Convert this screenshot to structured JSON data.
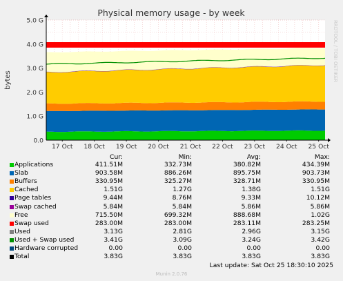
{
  "chart_data": {
    "type": "area",
    "title": "Physical memory usage - by week",
    "ylabel": "bytes",
    "watermark": "RRDTOOL / TOBI OETIKER",
    "xticks": [
      "17 Oct",
      "18 Oct",
      "19 Oct",
      "20 Oct",
      "21 Oct",
      "22 Oct",
      "23 Oct",
      "24 Oct",
      "25 Oct"
    ],
    "yticks": [
      "0.0",
      "1.0 G",
      "2.0 G",
      "3.0 G",
      "4.0 G",
      "5.0 G"
    ],
    "ylim_gb": [
      0,
      5
    ],
    "x_range_days": [
      16.5,
      25.2
    ],
    "series_gb": [
      {
        "name": "Applications",
        "color": "#00cc00",
        "start": 0.35,
        "end": 0.4
      },
      {
        "name": "Slab",
        "color": "#0066b3",
        "start": 0.86,
        "end": 0.88
      },
      {
        "name": "Buffers",
        "color": "#ff8000",
        "start": 0.31,
        "end": 0.33
      },
      {
        "name": "Cached",
        "color": "#ffcc00",
        "start": 1.3,
        "end": 1.51
      },
      {
        "name": "Page tables",
        "color": "#330099",
        "start": 0.009,
        "end": 0.009
      },
      {
        "name": "Swap cached",
        "color": "#990099",
        "start": 0.006,
        "end": 0.006
      },
      {
        "name": "Free",
        "color": "#ffffcc",
        "start": 0.82,
        "end": 0.7
      }
    ],
    "swap_used_band_gb": [
      3.85,
      4.08
    ],
    "swap_used_color": "#ff0000",
    "committed_line_gb": {
      "start": 3.16,
      "end": 3.42,
      "color": "#008f00"
    }
  },
  "legend": {
    "headers": {
      "cur": "Cur:",
      "min": "Min:",
      "avg": "Avg:",
      "max": "Max:"
    },
    "rows": [
      {
        "name": "Applications",
        "color": "#00cc00",
        "cur": "411.51M",
        "min": "332.73M",
        "avg": "380.82M",
        "max": "434.39M"
      },
      {
        "name": "Slab",
        "color": "#0066b3",
        "cur": "903.58M",
        "min": "886.26M",
        "avg": "895.75M",
        "max": "903.73M"
      },
      {
        "name": "Buffers",
        "color": "#ff8000",
        "cur": "330.95M",
        "min": "325.27M",
        "avg": "328.71M",
        "max": "330.95M"
      },
      {
        "name": "Cached",
        "color": "#ffcc00",
        "cur": "1.51G",
        "min": "1.27G",
        "avg": "1.38G",
        "max": "1.51G"
      },
      {
        "name": "Page tables",
        "color": "#330099",
        "cur": "9.44M",
        "min": "8.76M",
        "avg": "9.33M",
        "max": "10.12M"
      },
      {
        "name": "Swap cached",
        "color": "#990099",
        "cur": "5.84M",
        "min": "5.84M",
        "avg": "5.86M",
        "max": "5.86M"
      },
      {
        "name": "Free",
        "color": "#ffffcc",
        "cur": "715.50M",
        "min": "699.32M",
        "avg": "888.68M",
        "max": "1.02G"
      },
      {
        "name": "Swap used",
        "color": "#ff0000",
        "cur": "283.00M",
        "min": "283.00M",
        "avg": "283.11M",
        "max": "283.25M"
      },
      {
        "name": "Used",
        "color": "#808080",
        "cur": "3.13G",
        "min": "2.81G",
        "avg": "2.96G",
        "max": "3.15G"
      },
      {
        "name": "Used + Swap used",
        "color": "#008f00",
        "cur": "3.41G",
        "min": "3.09G",
        "avg": "3.24G",
        "max": "3.42G"
      },
      {
        "name": "Hardware corrupted",
        "color": "#00487d",
        "cur": "0.00",
        "min": "0.00",
        "avg": "0.00",
        "max": "0.00"
      },
      {
        "name": "Total",
        "color": "#000000",
        "cur": "3.83G",
        "min": "3.83G",
        "avg": "3.83G",
        "max": "3.83G"
      }
    ]
  },
  "last_update": "Last update: Sat Oct 25 18:30:10 2025",
  "footer": "Munin 2.0.76"
}
